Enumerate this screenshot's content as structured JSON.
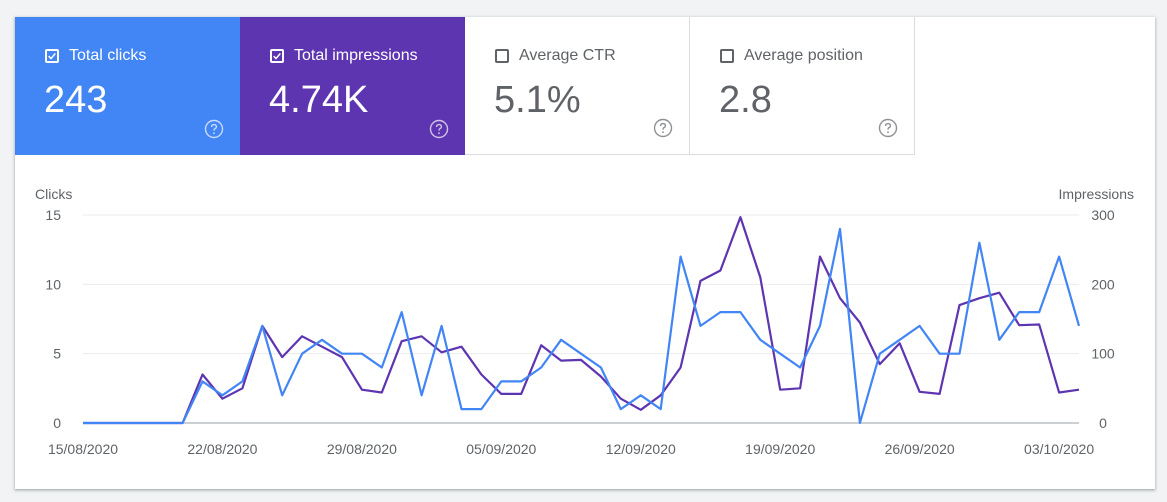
{
  "metrics": [
    {
      "label": "Total clicks",
      "value": "243",
      "checked": true,
      "color": "#4285f4"
    },
    {
      "label": "Total impressions",
      "value": "4.74K",
      "checked": true,
      "color": "#5e35b1"
    },
    {
      "label": "Average CTR",
      "value": "5.1%",
      "checked": false
    },
    {
      "label": "Average position",
      "value": "2.8",
      "checked": false
    }
  ],
  "chart_data": {
    "type": "line",
    "x": [
      "15/08/2020",
      "16/08/2020",
      "17/08/2020",
      "18/08/2020",
      "19/08/2020",
      "20/08/2020",
      "21/08/2020",
      "22/08/2020",
      "23/08/2020",
      "24/08/2020",
      "25/08/2020",
      "26/08/2020",
      "27/08/2020",
      "28/08/2020",
      "29/08/2020",
      "30/08/2020",
      "31/08/2020",
      "01/09/2020",
      "02/09/2020",
      "03/09/2020",
      "04/09/2020",
      "05/09/2020",
      "06/09/2020",
      "07/09/2020",
      "08/09/2020",
      "09/09/2020",
      "10/09/2020",
      "11/09/2020",
      "12/09/2020",
      "13/09/2020",
      "14/09/2020",
      "15/09/2020",
      "16/09/2020",
      "17/09/2020",
      "18/09/2020",
      "19/09/2020",
      "20/09/2020",
      "21/09/2020",
      "22/09/2020",
      "23/09/2020",
      "24/09/2020",
      "25/09/2020",
      "26/09/2020",
      "27/09/2020",
      "28/09/2020",
      "29/09/2020",
      "30/09/2020",
      "01/10/2020",
      "02/10/2020",
      "03/10/2020",
      "04/10/2020"
    ],
    "xticks": [
      "15/08/2020",
      "22/08/2020",
      "29/08/2020",
      "05/09/2020",
      "12/09/2020",
      "19/09/2020",
      "26/09/2020",
      "03/10/2020"
    ],
    "series": [
      {
        "name": "Clicks",
        "axis": "left",
        "color": "#4285f4",
        "values": [
          0,
          0,
          0,
          0,
          0,
          0,
          3,
          2,
          3,
          7,
          2,
          5,
          6,
          5,
          5,
          4,
          8,
          2,
          7,
          1,
          1,
          3,
          3,
          4,
          6,
          5,
          4,
          1,
          2,
          1,
          12,
          7,
          8,
          8,
          6,
          5,
          4,
          7,
          14,
          0,
          5,
          6,
          7,
          5,
          5,
          13,
          6,
          8,
          8,
          12,
          7
        ]
      },
      {
        "name": "Impressions",
        "axis": "right",
        "color": "#5e35b1",
        "values": [
          0,
          0,
          0,
          0,
          0,
          0,
          70,
          35,
          50,
          140,
          95,
          125,
          110,
          95,
          48,
          44,
          118,
          125,
          102,
          110,
          70,
          42,
          42,
          112,
          90,
          91,
          67,
          35,
          19,
          40,
          80,
          205,
          220,
          297,
          210,
          48,
          50,
          240,
          180,
          145,
          85,
          115,
          45,
          42,
          170,
          180,
          188,
          141,
          142,
          44,
          48
        ]
      }
    ],
    "ylabel_left": "Clicks",
    "ylim_left": [
      0,
      15
    ],
    "yticks_left": [
      0,
      5,
      10,
      15
    ],
    "ylabel_right": "Impressions",
    "ylim_right": [
      0,
      300
    ],
    "yticks_right": [
      0,
      100,
      200,
      300
    ],
    "grid": true
  }
}
